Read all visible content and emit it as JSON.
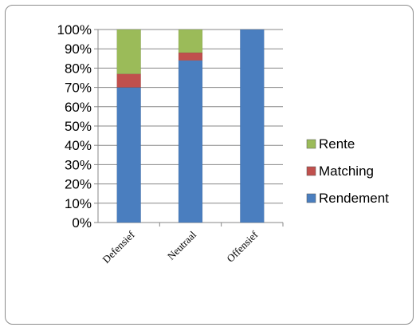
{
  "chart_data": {
    "type": "bar",
    "stacked": true,
    "categories": [
      "Defensief",
      "Neutraal",
      "Offensief"
    ],
    "series": [
      {
        "name": "Rendement",
        "values": [
          70,
          84,
          100
        ],
        "color": "#4a7ebf"
      },
      {
        "name": "Matching",
        "values": [
          7,
          4,
          0
        ],
        "color": "#c0504d"
      },
      {
        "name": "Rente",
        "values": [
          23,
          12,
          0
        ],
        "color": "#9bbb59"
      }
    ],
    "ylim": [
      0,
      100
    ],
    "yticks": [
      "0%",
      "10%",
      "20%",
      "30%",
      "40%",
      "50%",
      "60%",
      "70%",
      "80%",
      "90%",
      "100%"
    ],
    "legend_order": [
      "Rente",
      "Matching",
      "Rendement"
    ],
    "legend_position": "right",
    "grid": true
  }
}
